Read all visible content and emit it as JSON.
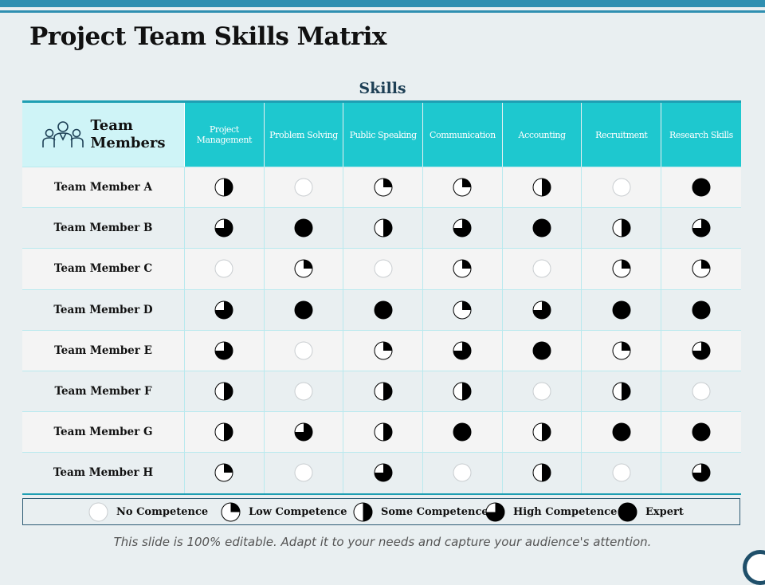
{
  "title": "Project Team Skills Matrix",
  "skills_label": "Skills",
  "team_members_label": "Team Members",
  "team_members_label_line1": "Team",
  "team_members_label_line2": "Members",
  "columns": [
    "Project Management",
    "Problem Solving",
    "Public Speaking",
    "Communication",
    "Accounting",
    "Recruitment",
    "Research Skills"
  ],
  "rows": [
    {
      "name": "Team Member A",
      "levels": [
        2,
        0,
        1,
        1,
        2,
        0,
        4
      ]
    },
    {
      "name": "Team Member B",
      "levels": [
        3,
        4,
        2,
        3,
        4,
        2,
        3
      ]
    },
    {
      "name": "Team Member C",
      "levels": [
        0,
        1,
        0,
        1,
        0,
        1,
        1
      ]
    },
    {
      "name": "Team Member D",
      "levels": [
        3,
        4,
        4,
        1,
        3,
        4,
        4
      ]
    },
    {
      "name": "Team Member E",
      "levels": [
        3,
        0,
        1,
        3,
        4,
        1,
        3
      ]
    },
    {
      "name": "Team Member F",
      "levels": [
        2,
        0,
        2,
        2,
        0,
        2,
        0
      ]
    },
    {
      "name": "Team Member G",
      "levels": [
        2,
        3,
        2,
        4,
        2,
        4,
        4
      ]
    },
    {
      "name": "Team Member H",
      "levels": [
        1,
        0,
        3,
        0,
        2,
        0,
        3
      ]
    }
  ],
  "legend": [
    {
      "level": 0,
      "label": "No Competence"
    },
    {
      "level": 1,
      "label": "Low Competence"
    },
    {
      "level": 2,
      "label": "Some Competence"
    },
    {
      "level": 3,
      "label": "High Competence"
    },
    {
      "level": 4,
      "label": "Expert"
    }
  ],
  "footer": "This slide is 100% editable. Adapt it to your needs and capture your audience's attention.",
  "colors": {
    "accent": "#1ec8cf",
    "header_light": "#cff4f7",
    "bar": "#2f8fb1",
    "dark": "#1d3f55"
  }
}
